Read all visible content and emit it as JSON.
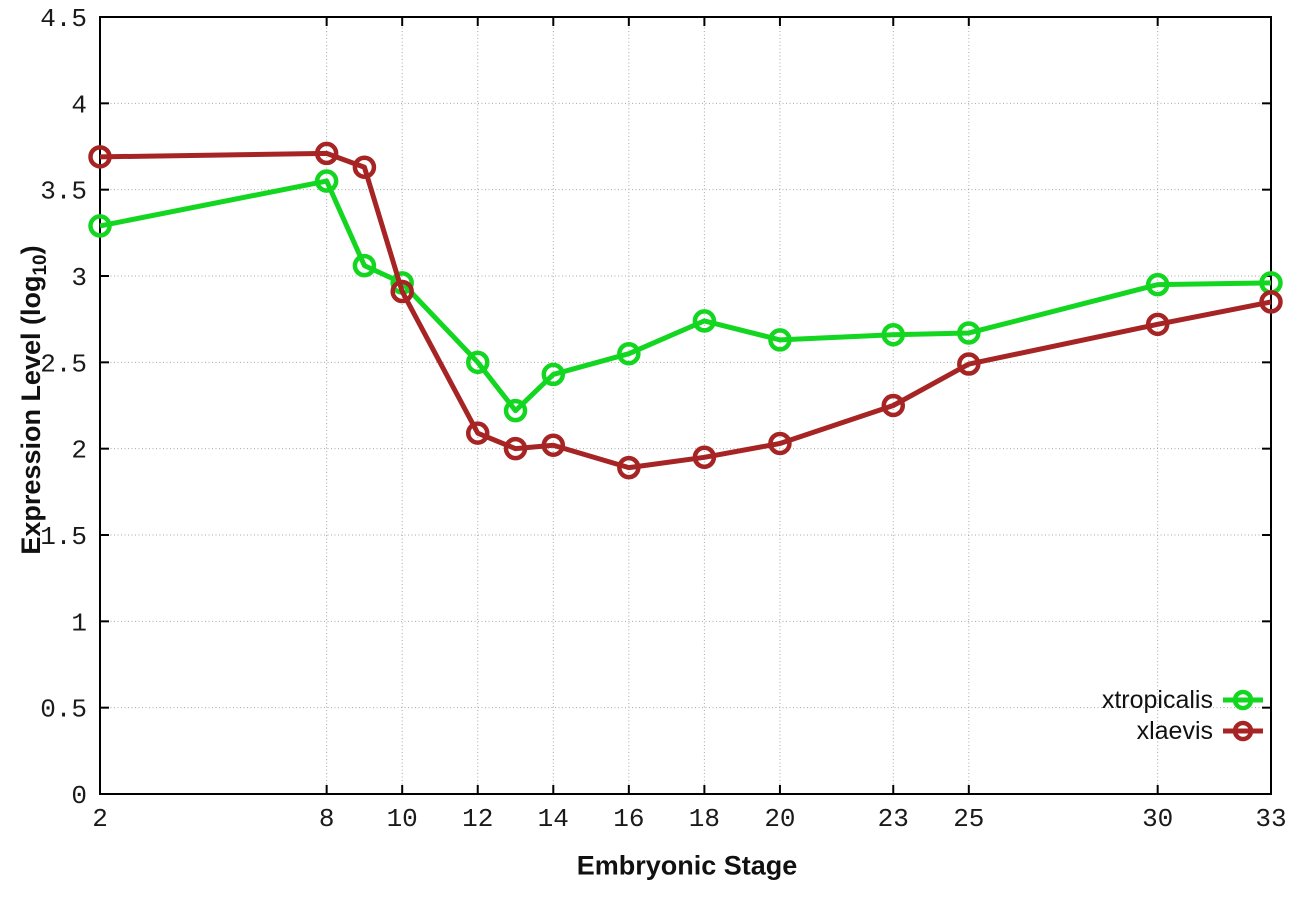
{
  "figure": {
    "ylabel_prefix": "Expression Level (log",
    "ylabel_sub": "10",
    "ylabel_suffix": ")"
  },
  "chart_data": {
    "type": "line",
    "title": "",
    "xlabel": "Embryonic Stage",
    "ylabel": "Expression Level (log10)",
    "x": [
      2,
      8,
      9,
      10,
      12,
      13,
      14,
      16,
      18,
      20,
      23,
      25,
      30,
      33
    ],
    "series": [
      {
        "name": "xtropicalis",
        "color": "#12d620",
        "values": [
          3.29,
          3.55,
          3.06,
          2.96,
          2.5,
          2.22,
          2.43,
          2.55,
          2.74,
          2.63,
          2.66,
          2.67,
          2.95,
          2.96
        ]
      },
      {
        "name": "xlaevis",
        "color": "#a62424",
        "values": [
          3.69,
          3.71,
          3.63,
          2.91,
          2.09,
          2.0,
          2.02,
          1.89,
          1.95,
          2.03,
          2.25,
          2.49,
          2.72,
          2.85
        ]
      }
    ],
    "xlim": [
      2,
      33
    ],
    "ylim": [
      0,
      4.5
    ],
    "xticks": [
      2,
      8,
      10,
      12,
      14,
      16,
      18,
      20,
      23,
      25,
      30,
      33
    ],
    "xtick_labels": [
      "2",
      "8",
      "10",
      "12",
      "14",
      "16",
      "18",
      "20",
      "23",
      "25",
      "30",
      "33"
    ],
    "yticks": [
      0,
      0.5,
      1,
      1.5,
      2,
      2.5,
      3,
      3.5,
      4,
      4.5
    ],
    "ytick_labels": [
      "0",
      "0.5",
      "1",
      "1.5",
      "2",
      "2.5",
      "3",
      "3.5",
      "4",
      "4.5"
    ],
    "grid": true,
    "grid_color": "#a8a8a8",
    "border_color": "#000000",
    "legend_position": "bottom-right",
    "marker": "open-circle"
  }
}
